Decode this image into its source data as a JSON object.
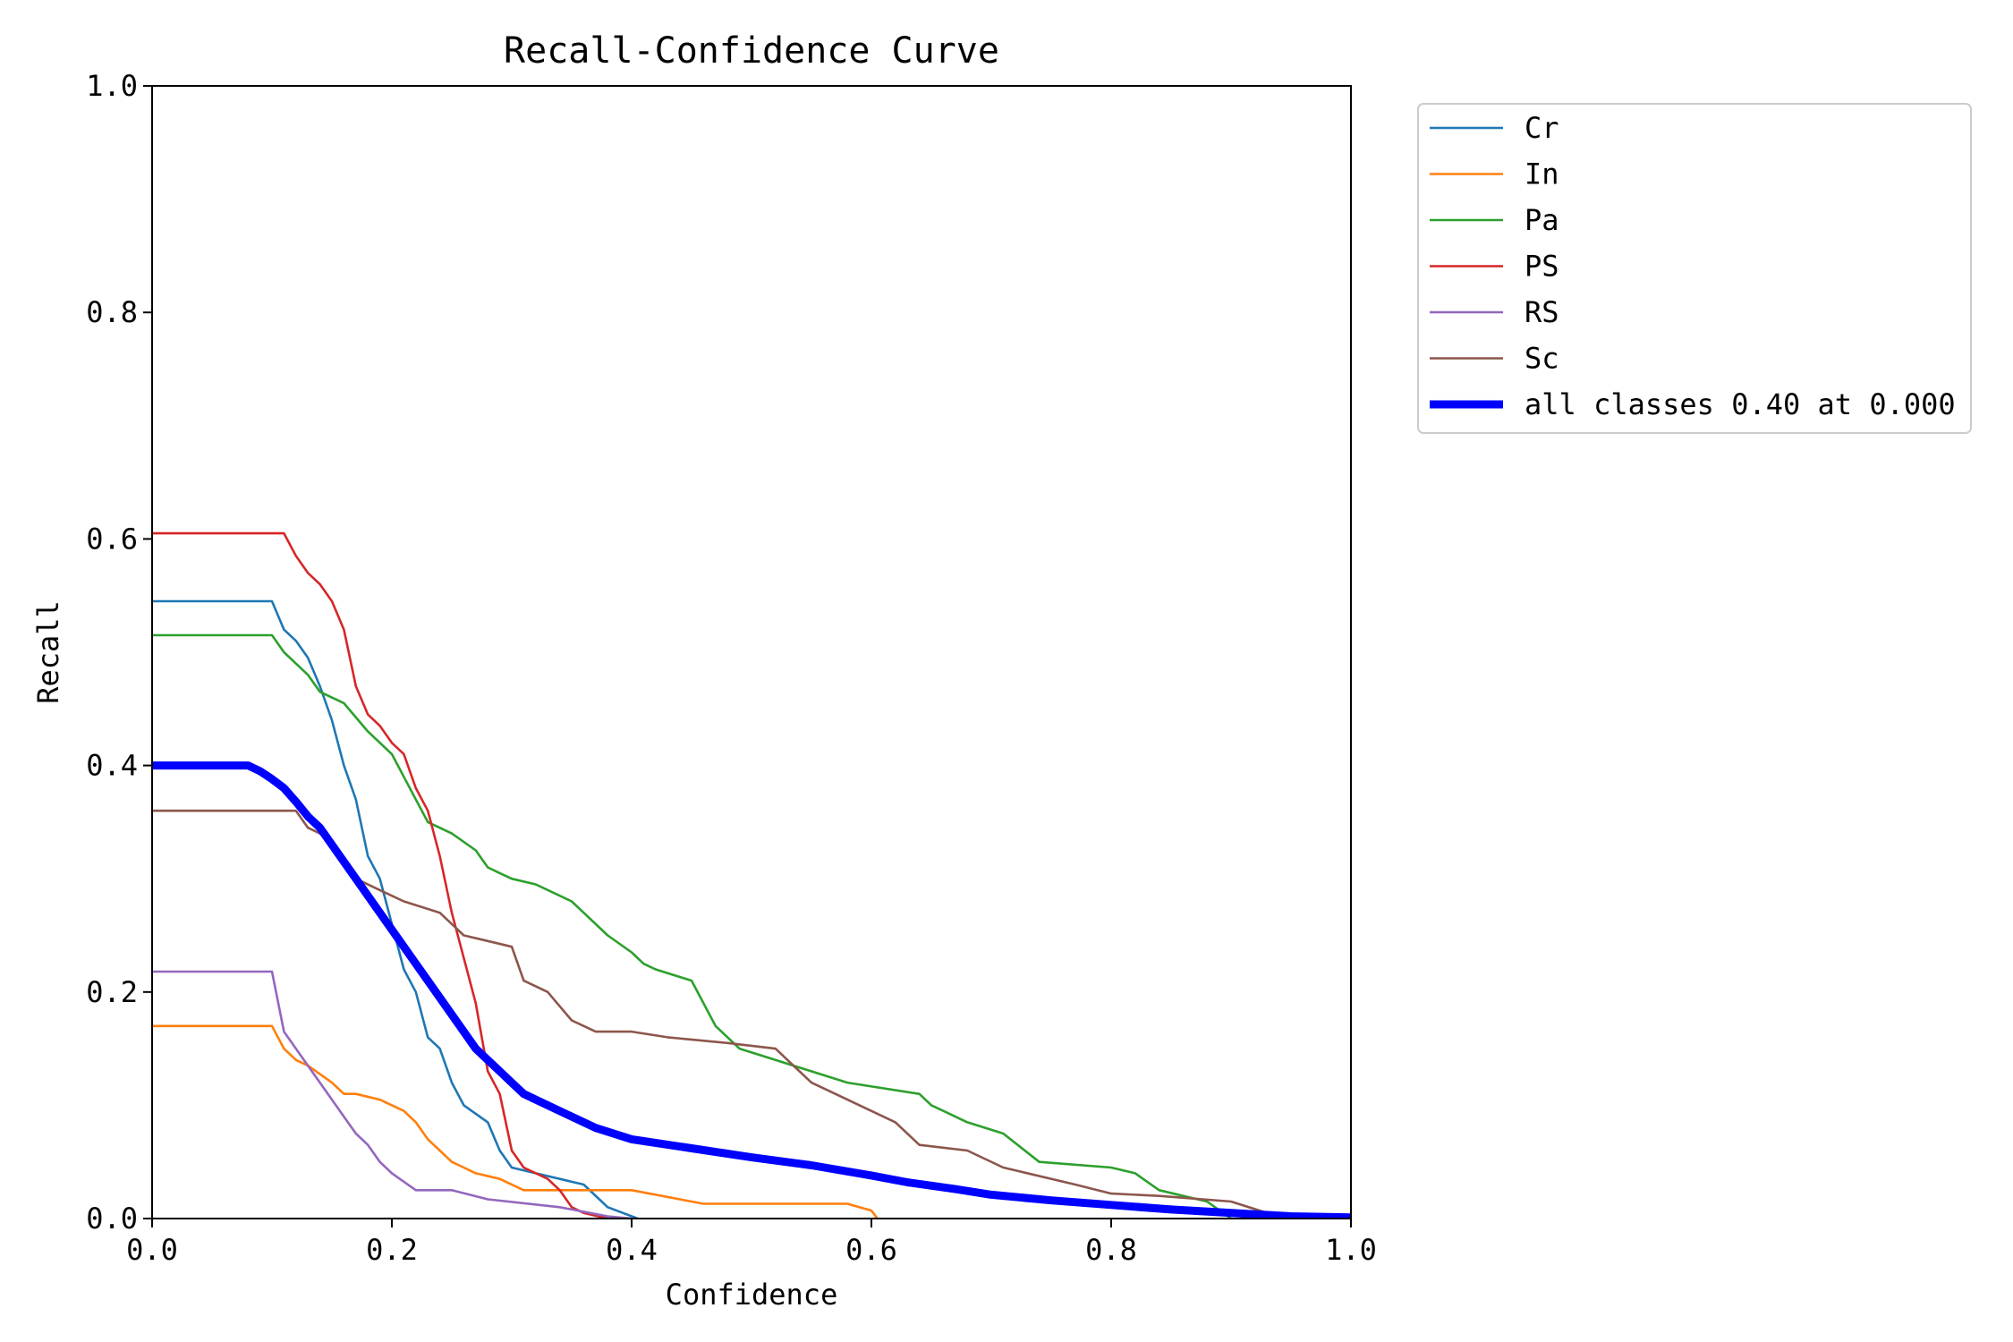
{
  "chart_data": {
    "type": "line",
    "title": "Recall-Confidence Curve",
    "xlabel": "Confidence",
    "ylabel": "Recall",
    "xlim": [
      0,
      1
    ],
    "ylim": [
      0,
      1
    ],
    "xticks": [
      0.0,
      0.2,
      0.4,
      0.6,
      0.8,
      1.0
    ],
    "yticks": [
      0.0,
      0.2,
      0.4,
      0.6,
      0.8,
      1.0
    ],
    "xtick_labels": [
      "0.0",
      "0.2",
      "0.4",
      "0.6",
      "0.8",
      "1.0"
    ],
    "ytick_labels": [
      "0.0",
      "0.2",
      "0.4",
      "0.6",
      "0.8",
      "1.0"
    ],
    "grid": false,
    "legend_position": "outside-top-right",
    "series": [
      {
        "name": "Cr",
        "color": "#1f77b4",
        "line_width": "thin",
        "x": [
          0,
          0.1,
          0.11,
          0.12,
          0.13,
          0.14,
          0.15,
          0.16,
          0.17,
          0.18,
          0.19,
          0.2,
          0.21,
          0.22,
          0.23,
          0.24,
          0.25,
          0.26,
          0.28,
          0.29,
          0.3,
          0.32,
          0.36,
          0.38,
          0.405
        ],
        "y": [
          0.545,
          0.545,
          0.52,
          0.51,
          0.495,
          0.47,
          0.44,
          0.4,
          0.37,
          0.32,
          0.3,
          0.26,
          0.22,
          0.2,
          0.16,
          0.15,
          0.12,
          0.1,
          0.085,
          0.06,
          0.045,
          0.04,
          0.03,
          0.01,
          0.0
        ]
      },
      {
        "name": "In",
        "color": "#ff7f0e",
        "line_width": "thin",
        "x": [
          0,
          0.1,
          0.11,
          0.12,
          0.13,
          0.15,
          0.16,
          0.17,
          0.19,
          0.2,
          0.21,
          0.22,
          0.23,
          0.24,
          0.25,
          0.26,
          0.27,
          0.29,
          0.31,
          0.4,
          0.46,
          0.58,
          0.6,
          0.605
        ],
        "y": [
          0.17,
          0.17,
          0.15,
          0.14,
          0.135,
          0.12,
          0.11,
          0.11,
          0.105,
          0.1,
          0.095,
          0.085,
          0.07,
          0.06,
          0.05,
          0.045,
          0.04,
          0.035,
          0.025,
          0.025,
          0.013,
          0.013,
          0.007,
          0.0
        ]
      },
      {
        "name": "Pa",
        "color": "#2ca02c",
        "line_width": "thin",
        "x": [
          0,
          0.1,
          0.11,
          0.12,
          0.13,
          0.14,
          0.16,
          0.18,
          0.2,
          0.21,
          0.22,
          0.23,
          0.25,
          0.27,
          0.28,
          0.29,
          0.3,
          0.32,
          0.35,
          0.38,
          0.4,
          0.41,
          0.42,
          0.45,
          0.47,
          0.49,
          0.52,
          0.58,
          0.64,
          0.65,
          0.66,
          0.68,
          0.71,
          0.74,
          0.8,
          0.82,
          0.84,
          0.88,
          0.9
        ],
        "y": [
          0.515,
          0.515,
          0.5,
          0.49,
          0.48,
          0.465,
          0.455,
          0.43,
          0.41,
          0.39,
          0.37,
          0.35,
          0.34,
          0.325,
          0.31,
          0.305,
          0.3,
          0.295,
          0.28,
          0.25,
          0.235,
          0.225,
          0.22,
          0.21,
          0.17,
          0.15,
          0.14,
          0.12,
          0.11,
          0.1,
          0.095,
          0.085,
          0.075,
          0.05,
          0.045,
          0.04,
          0.025,
          0.015,
          0.0
        ]
      },
      {
        "name": "PS",
        "color": "#d62728",
        "line_width": "thin",
        "x": [
          0,
          0.11,
          0.12,
          0.13,
          0.14,
          0.15,
          0.16,
          0.17,
          0.18,
          0.19,
          0.2,
          0.21,
          0.22,
          0.23,
          0.24,
          0.25,
          0.26,
          0.27,
          0.28,
          0.29,
          0.3,
          0.31,
          0.33,
          0.34,
          0.35,
          0.36,
          0.38
        ],
        "y": [
          0.605,
          0.605,
          0.585,
          0.57,
          0.56,
          0.545,
          0.52,
          0.47,
          0.445,
          0.435,
          0.42,
          0.41,
          0.38,
          0.36,
          0.32,
          0.27,
          0.23,
          0.19,
          0.13,
          0.11,
          0.06,
          0.045,
          0.035,
          0.025,
          0.01,
          0.005,
          0.0
        ]
      },
      {
        "name": "RS",
        "color": "#9467bd",
        "line_width": "thin",
        "x": [
          0,
          0.1,
          0.11,
          0.12,
          0.13,
          0.14,
          0.15,
          0.16,
          0.17,
          0.18,
          0.19,
          0.2,
          0.22,
          0.25,
          0.28,
          0.34,
          0.38,
          0.4
        ],
        "y": [
          0.218,
          0.218,
          0.165,
          0.15,
          0.135,
          0.12,
          0.105,
          0.09,
          0.075,
          0.065,
          0.05,
          0.04,
          0.025,
          0.025,
          0.017,
          0.01,
          0.002,
          0.0
        ]
      },
      {
        "name": "Sc",
        "color": "#8c564b",
        "line_width": "thin",
        "x": [
          0,
          0.12,
          0.13,
          0.14,
          0.15,
          0.17,
          0.19,
          0.21,
          0.24,
          0.26,
          0.28,
          0.3,
          0.31,
          0.33,
          0.35,
          0.37,
          0.4,
          0.43,
          0.48,
          0.52,
          0.55,
          0.58,
          0.62,
          0.64,
          0.68,
          0.71,
          0.77,
          0.8,
          0.84,
          0.9,
          0.93
        ],
        "y": [
          0.36,
          0.36,
          0.345,
          0.34,
          0.33,
          0.3,
          0.29,
          0.28,
          0.27,
          0.25,
          0.245,
          0.24,
          0.21,
          0.2,
          0.175,
          0.165,
          0.165,
          0.16,
          0.155,
          0.15,
          0.12,
          0.105,
          0.085,
          0.065,
          0.06,
          0.045,
          0.03,
          0.022,
          0.02,
          0.015,
          0.005
        ]
      },
      {
        "name": "all classes 0.40 at 0.000",
        "color": "#0000ff",
        "line_width": "thick",
        "x": [
          0,
          0.08,
          0.09,
          0.1,
          0.11,
          0.12,
          0.13,
          0.14,
          0.15,
          0.16,
          0.17,
          0.18,
          0.19,
          0.2,
          0.21,
          0.22,
          0.23,
          0.24,
          0.25,
          0.26,
          0.27,
          0.28,
          0.29,
          0.3,
          0.31,
          0.32,
          0.33,
          0.35,
          0.37,
          0.4,
          0.45,
          0.5,
          0.55,
          0.6,
          0.63,
          0.67,
          0.7,
          0.75,
          0.8,
          0.85,
          0.9,
          0.95,
          1.0
        ],
        "y": [
          0.4,
          0.4,
          0.395,
          0.388,
          0.38,
          0.368,
          0.355,
          0.345,
          0.33,
          0.315,
          0.3,
          0.285,
          0.27,
          0.255,
          0.24,
          0.225,
          0.21,
          0.195,
          0.18,
          0.165,
          0.15,
          0.14,
          0.13,
          0.12,
          0.11,
          0.105,
          0.1,
          0.09,
          0.08,
          0.07,
          0.062,
          0.054,
          0.047,
          0.038,
          0.032,
          0.026,
          0.021,
          0.016,
          0.012,
          0.008,
          0.005,
          0.002,
          0.001
        ]
      }
    ]
  }
}
